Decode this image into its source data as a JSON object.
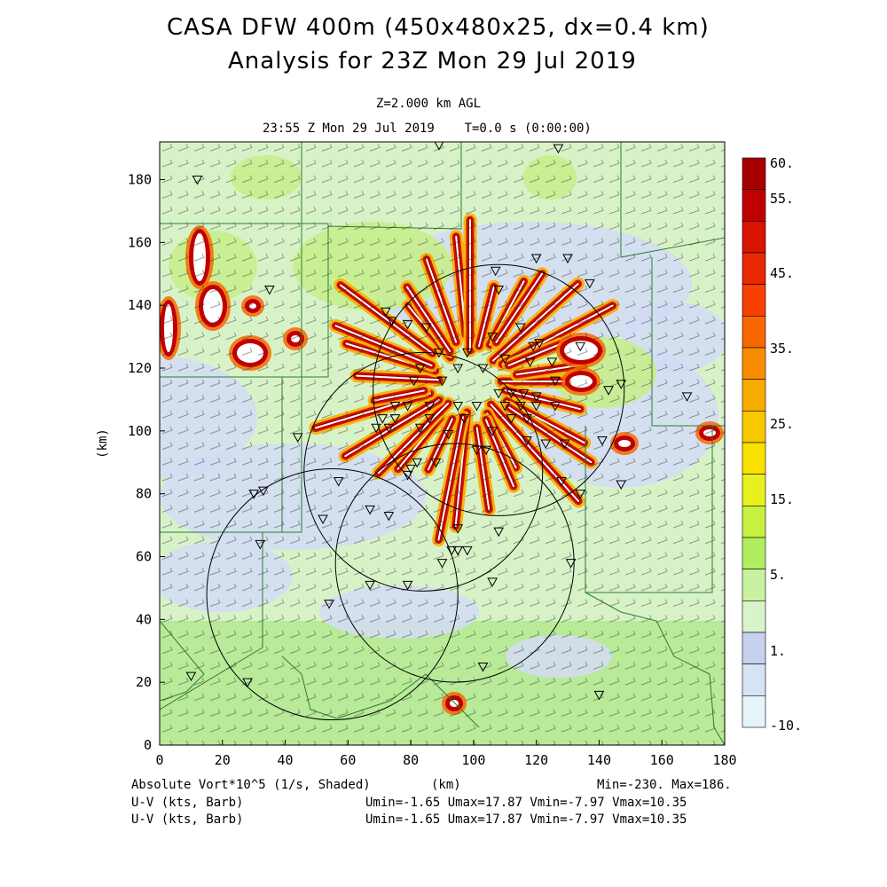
{
  "header": {
    "title_line1": "CASA DFW 400m (450x480x25, dx=0.4 km)",
    "title_line2": "Analysis for 23Z Mon 29 Jul 2019",
    "level": "Z=2.000 km AGL",
    "time": "23:55 Z Mon 29 Jul 2019    T=0.0 s (0:00:00)"
  },
  "footer": {
    "field1": "Absolute Vort*10^5 (1/s, Shaded)",
    "xunit": "(km)",
    "minmax": "Min=-230. Max=186.",
    "field2": "U-V (kts, Barb)",
    "field3": "U-V (kts, Barb)",
    "stats2": "Umin=-1.65 Umax=17.87 Vmin=-7.97 Vmax=10.35",
    "stats3": "Umin=-1.65 Umax=17.87 Vmin=-7.97 Vmax=10.35"
  },
  "chart_data": {
    "type": "heatmap",
    "xlabel": "",
    "ylabel": "(km)",
    "xlim": [
      0,
      180
    ],
    "ylim": [
      0,
      192
    ],
    "x_ticks": [
      0,
      20,
      40,
      60,
      80,
      100,
      120,
      140,
      160,
      180
    ],
    "y_ticks": [
      0,
      20,
      40,
      60,
      80,
      100,
      120,
      140,
      160,
      180
    ],
    "colorbar": {
      "labels": [
        "60.",
        "55.",
        "45.",
        "35.",
        "25.",
        "15.",
        "5.",
        "1.",
        "-10."
      ],
      "colors": [
        "#a80000",
        "#c00000",
        "#d81400",
        "#e82800",
        "#f84000",
        "#f86800",
        "#f88c00",
        "#f8ac00",
        "#f8c800",
        "#f8e000",
        "#e8f020",
        "#c8f040",
        "#b0ee60",
        "#c8f2a0",
        "#d8f4c8",
        "#c8d0f0",
        "#d4e4f4",
        "#e4f4f8"
      ]
    },
    "radar_rings": [
      {
        "cx": 108,
        "cy": 113,
        "r": 40
      },
      {
        "cx": 84,
        "cy": 87,
        "r": 38
      },
      {
        "cx": 94,
        "cy": 58,
        "r": 38
      },
      {
        "cx": 55,
        "cy": 48,
        "r": 40
      }
    ],
    "stations": [
      [
        89,
        191
      ],
      [
        127,
        190
      ],
      [
        12,
        180
      ],
      [
        130,
        155
      ],
      [
        120,
        155
      ],
      [
        137,
        147
      ],
      [
        107,
        151
      ],
      [
        108,
        145
      ],
      [
        35,
        145
      ],
      [
        72,
        138
      ],
      [
        74,
        135
      ],
      [
        79,
        134
      ],
      [
        85,
        133
      ],
      [
        115,
        133
      ],
      [
        106,
        130
      ],
      [
        121,
        128
      ],
      [
        119,
        127
      ],
      [
        134,
        127
      ],
      [
        89,
        125
      ],
      [
        98,
        125
      ],
      [
        110,
        123
      ],
      [
        118,
        122
      ],
      [
        125,
        122
      ],
      [
        83,
        120
      ],
      [
        95,
        120
      ],
      [
        103,
        120
      ],
      [
        81,
        116
      ],
      [
        90,
        116
      ],
      [
        126,
        116
      ],
      [
        147,
        115
      ],
      [
        143,
        113
      ],
      [
        108,
        112
      ],
      [
        112,
        112
      ],
      [
        116,
        112
      ],
      [
        120,
        111
      ],
      [
        168,
        111
      ],
      [
        75,
        108
      ],
      [
        79,
        108
      ],
      [
        86,
        108
      ],
      [
        95,
        108
      ],
      [
        101,
        108
      ],
      [
        110,
        108
      ],
      [
        115,
        108
      ],
      [
        120,
        108
      ],
      [
        126,
        108
      ],
      [
        71,
        104
      ],
      [
        75,
        104
      ],
      [
        86,
        104
      ],
      [
        97,
        104
      ],
      [
        112,
        104
      ],
      [
        117,
        104
      ],
      [
        69,
        101
      ],
      [
        73,
        101
      ],
      [
        83,
        101
      ],
      [
        92,
        99
      ],
      [
        106,
        100
      ],
      [
        44,
        98
      ],
      [
        117,
        97
      ],
      [
        123,
        96
      ],
      [
        129,
        96
      ],
      [
        141,
        97
      ],
      [
        101,
        94
      ],
      [
        104,
        94
      ],
      [
        80,
        88
      ],
      [
        82,
        90
      ],
      [
        88,
        90
      ],
      [
        79,
        86
      ],
      [
        57,
        84
      ],
      [
        128,
        84
      ],
      [
        147,
        83
      ],
      [
        33,
        81
      ],
      [
        30,
        80
      ],
      [
        134,
        80
      ],
      [
        67,
        75
      ],
      [
        73,
        73
      ],
      [
        52,
        72
      ],
      [
        93,
        62
      ],
      [
        95,
        62
      ],
      [
        98,
        62
      ],
      [
        90,
        58
      ],
      [
        131,
        58
      ],
      [
        67,
        51
      ],
      [
        79,
        51
      ],
      [
        106,
        52
      ],
      [
        54,
        45
      ],
      [
        10,
        22
      ],
      [
        28,
        20
      ],
      [
        32,
        64
      ],
      [
        103,
        25
      ],
      [
        140,
        16
      ],
      [
        95,
        69
      ],
      [
        108,
        68
      ]
    ]
  }
}
